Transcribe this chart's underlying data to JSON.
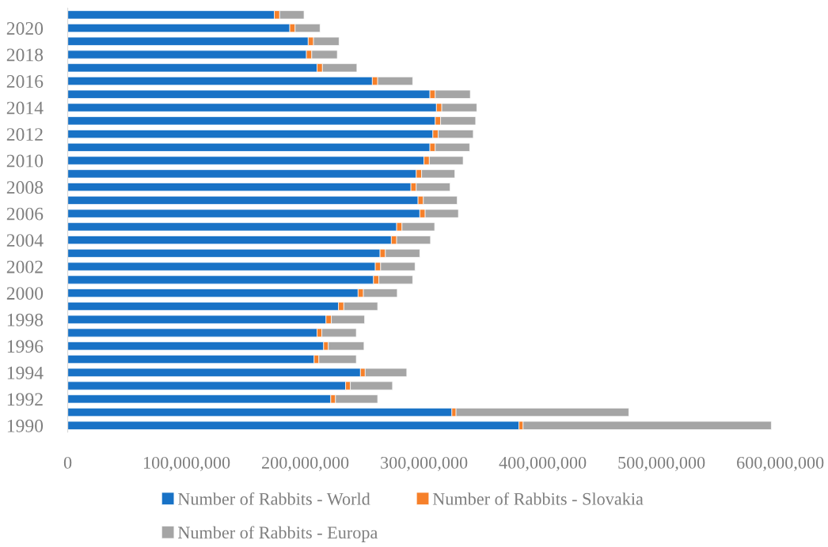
{
  "chart_data": {
    "type": "bar",
    "orientation": "horizontal",
    "stacked": true,
    "categories": [
      null,
      "2020",
      null,
      "2018",
      null,
      "2016",
      null,
      "2014",
      null,
      "2012",
      null,
      "2010",
      null,
      "2008",
      null,
      "2006",
      null,
      "2004",
      null,
      "2002",
      null,
      "2000",
      null,
      "1998",
      null,
      "1996",
      null,
      "1994",
      null,
      "1992",
      null,
      "1990"
    ],
    "series": [
      {
        "name": "Number of Rabbits - World",
        "color": "#1872c6",
        "values": [
          174000000,
          187000000,
          202500000,
          201000000,
          210000000,
          256500000,
          305000000,
          310500000,
          309500000,
          307500000,
          305000000,
          300000000,
          293500000,
          289000000,
          295000000,
          296500000,
          277000000,
          272500000,
          263000000,
          259000000,
          257500000,
          244500000,
          228000000,
          217500000,
          210000000,
          215500000,
          207500000,
          246500000,
          234000000,
          221500000,
          323500000,
          380000000
        ]
      },
      {
        "name": "Number of Rabbits - Slovakia",
        "color": "#f6802a",
        "values": [
          4500000,
          4500000,
          4500000,
          4500000,
          4500000,
          4500000,
          4500000,
          4500000,
          4500000,
          4500000,
          4500000,
          4500000,
          4500000,
          4500000,
          4500000,
          4500000,
          4500000,
          4500000,
          4500000,
          4500000,
          4500000,
          4500000,
          4500000,
          4500000,
          4000000,
          4000000,
          4000000,
          4000000,
          4000000,
          4000000,
          3500000,
          3500000
        ]
      },
      {
        "name": "Number of Rabbits - Europa",
        "color": "#a5a5a5",
        "values": [
          20500000,
          21000000,
          21500000,
          21500000,
          29000000,
          29500000,
          29500000,
          29500000,
          29500000,
          29500000,
          29000000,
          28500000,
          28000000,
          28500000,
          28500000,
          28000000,
          27500000,
          28500000,
          29000000,
          29000000,
          28500000,
          28500000,
          28500000,
          28000000,
          29000000,
          30000000,
          31500000,
          35000000,
          35500000,
          35500000,
          145500000,
          209000000
        ]
      }
    ],
    "xlim": [
      0,
      600000000
    ],
    "xticks": [
      {
        "value": 0,
        "label": "0"
      },
      {
        "value": 100000000,
        "label": "100,000,000"
      },
      {
        "value": 200000000,
        "label": "200,000,000"
      },
      {
        "value": 300000000,
        "label": "300,000,000"
      },
      {
        "value": 400000000,
        "label": "400,000,000"
      },
      {
        "value": 500000000,
        "label": "500,000,000"
      },
      {
        "value": 600000000,
        "label": "600,000,000"
      }
    ],
    "grid": false,
    "legend": "bottom"
  }
}
